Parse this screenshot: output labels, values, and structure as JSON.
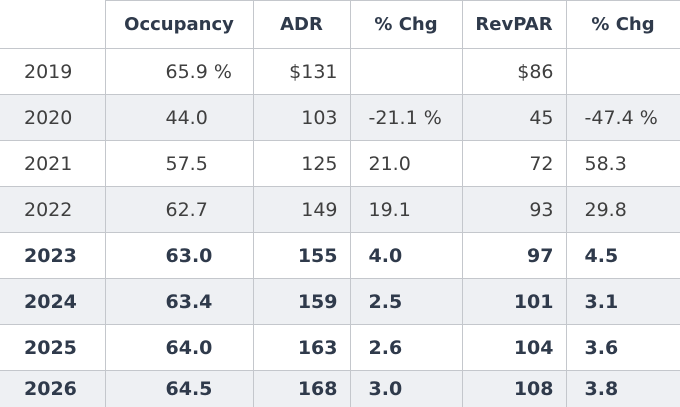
{
  "header": [
    "Occupancy",
    "ADR",
    "% Chg",
    "RevPAR",
    "% Chg"
  ],
  "rows": [
    [
      "2019",
      "65.9 %",
      "$131",
      null,
      "$86",
      null
    ],
    [
      "2020",
      "44.0",
      "103",
      "-21.1 %",
      "45",
      "-47.4 %"
    ],
    [
      "2021",
      "57.5",
      "125",
      "21.0",
      "72",
      "58.3"
    ],
    [
      "2022",
      "62.7",
      "149",
      "19.1",
      "93",
      "29.8"
    ],
    [
      "2023",
      "63.0",
      "155",
      "4.0",
      "97",
      "4.5"
    ],
    [
      "2024",
      "63.4",
      "159",
      "2.5",
      "101",
      "3.1"
    ],
    [
      "2025",
      "64.0",
      "163",
      "2.6",
      "104",
      "3.6"
    ],
    [
      "2026",
      "64.5",
      "168",
      "3.0",
      "108",
      "3.8"
    ]
  ]
}
